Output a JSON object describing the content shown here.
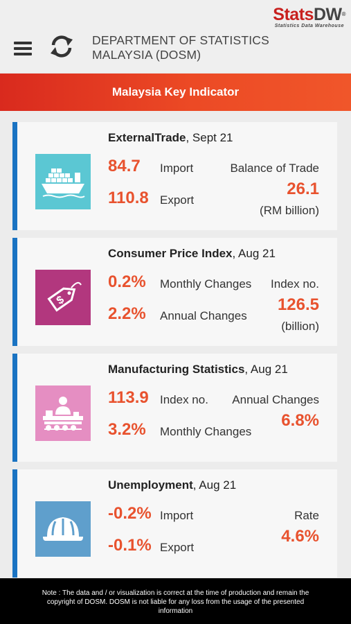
{
  "header": {
    "logo_main_a": "StatsDW",
    "logo_sub": "Statistics Data Warehouse",
    "dept_line1": "DEPARTMENT OF STATISTICS",
    "dept_line2": "MALAYSIA (DOSM)",
    "menu_icon": "hamburger-icon",
    "refresh_icon": "refresh-icon"
  },
  "banner": {
    "title": "Malaysia Key Indicator"
  },
  "colors": {
    "accent": "#e8522e",
    "card_border": "#1a73c2",
    "banner": "#e33a22"
  },
  "cards": [
    {
      "title_bold": "ExternalTrade",
      "title_rest": ", Sept 21",
      "icon": "cargo-ship-icon",
      "icon_bg": "#5bc7d3",
      "v1": "84.7",
      "l1": "Import",
      "v2": "110.8",
      "l2": "Export",
      "r_label": "Balance of Trade",
      "r_value": "26.1",
      "r_unit": "(RM billion)"
    },
    {
      "title_bold": "Consumer Price Index",
      "title_rest": ", Aug 21",
      "icon": "price-tag-icon",
      "icon_bg": "#b2377e",
      "v1": "0.2%",
      "l1": "Monthly Changes",
      "v2": "2.2%",
      "l2": "Annual Changes",
      "r_label": "Index no.",
      "r_value": "126.5",
      "r_unit": "(billion)"
    },
    {
      "title_bold": "Manufacturing Statistics",
      "title_rest": ", Aug 21",
      "icon": "factory-worker-icon",
      "icon_bg": "#e58ec2",
      "v1": "113.9",
      "l1": "Index no.",
      "v2": "3.2%",
      "l2": "Monthly Changes",
      "r_label": "Annual Changes",
      "r_value": "6.8%",
      "r_unit": ""
    },
    {
      "title_bold": "Unemployment",
      "title_rest": ", Aug 21",
      "icon": "hard-hat-icon",
      "icon_bg": "#5f9fcc",
      "v1": "-0.2%",
      "l1": "Import",
      "v2": "-0.1%",
      "l2": "Export",
      "r_label": "Rate",
      "r_value": "4.6%",
      "r_unit": ""
    }
  ],
  "footer": {
    "note": "Note : The data and / or visualization is correct at the time of production and remain the copyright of DOSM. DOSM is not liable for any loss from the usage of the presented information"
  }
}
